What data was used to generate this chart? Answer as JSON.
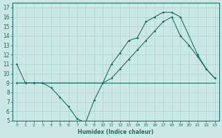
{
  "xlabel": "Humidex (Indice chaleur)",
  "xlim": [
    -0.5,
    23.5
  ],
  "ylim": [
    5,
    17.5
  ],
  "yticks": [
    5,
    6,
    7,
    8,
    9,
    10,
    11,
    12,
    13,
    14,
    15,
    16,
    17
  ],
  "xticks": [
    0,
    1,
    2,
    3,
    4,
    5,
    6,
    7,
    8,
    9,
    10,
    11,
    12,
    13,
    14,
    15,
    16,
    17,
    18,
    19,
    20,
    21,
    22,
    23
  ],
  "bg_color": "#cce8e5",
  "line_color": "#1a6e65",
  "grid_color": "#aad4cf",
  "line1_x": [
    0,
    1,
    2,
    3,
    4,
    5,
    6,
    7,
    8,
    9,
    10,
    11,
    12,
    13,
    14,
    15,
    16,
    17,
    18,
    19,
    21,
    22,
    23
  ],
  "line1_y": [
    11,
    9,
    9,
    9,
    8.5,
    7.5,
    6.5,
    5.2,
    4.8,
    7.2,
    9.0,
    11.0,
    12.2,
    13.5,
    13.8,
    15.5,
    16.0,
    16.5,
    16.5,
    16.0,
    12.0,
    10.5,
    9.5
  ],
  "line2_x": [
    0,
    1,
    2,
    3,
    10,
    11,
    12,
    13,
    14,
    15,
    16,
    17,
    18,
    19,
    20,
    21,
    22,
    23
  ],
  "line2_y": [
    9,
    9,
    9,
    9,
    9.0,
    9.5,
    10.5,
    11.5,
    12.5,
    13.5,
    14.5,
    15.5,
    16.0,
    14.0,
    13.0,
    11.8,
    10.5,
    9.5
  ],
  "line3_x": [
    0,
    1,
    2,
    3,
    4,
    5,
    6,
    7,
    8,
    9,
    10,
    14,
    18,
    19,
    20,
    21,
    22,
    23
  ],
  "line3_y": [
    9,
    9,
    9,
    9,
    9,
    9,
    9,
    9,
    9,
    9,
    9,
    9,
    9,
    9,
    9,
    9,
    9,
    9
  ]
}
